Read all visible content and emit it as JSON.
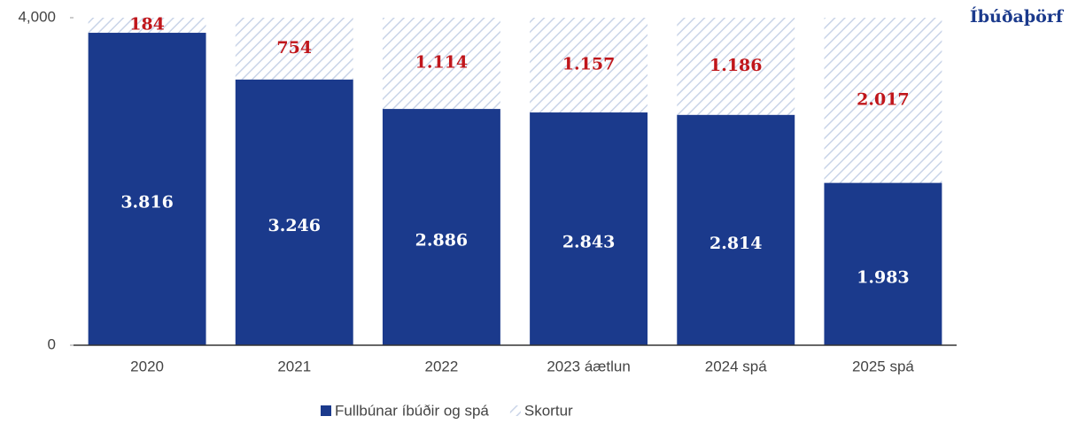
{
  "chart_data": {
    "type": "stacked_bar",
    "annotation": "Íbúðaþörf",
    "categories": [
      "2020",
      "2021",
      "2022",
      "2023 áætlun",
      "2024 spá",
      "2025 spá"
    ],
    "series": [
      {
        "name": "Fullbúnar íbúðir og spá",
        "color": "#1b3a8c",
        "values": [
          3816,
          3246,
          2886,
          2843,
          2814,
          1983
        ],
        "value_labels": [
          "3.816",
          "3.246",
          "2.886",
          "2.843",
          "2.814",
          "1.983"
        ]
      },
      {
        "name": "Skortur",
        "color": "#c9d4e8",
        "values": [
          184,
          754,
          1114,
          1157,
          1186,
          2017
        ],
        "value_labels": [
          "184",
          "754",
          "1.114",
          "1.157",
          "1.186",
          "2.017"
        ]
      }
    ],
    "ylim": [
      0,
      4000
    ],
    "yticks": [
      0,
      {
        "value": 4000,
        "label": "4,000"
      }
    ],
    "legend": "bottom"
  }
}
